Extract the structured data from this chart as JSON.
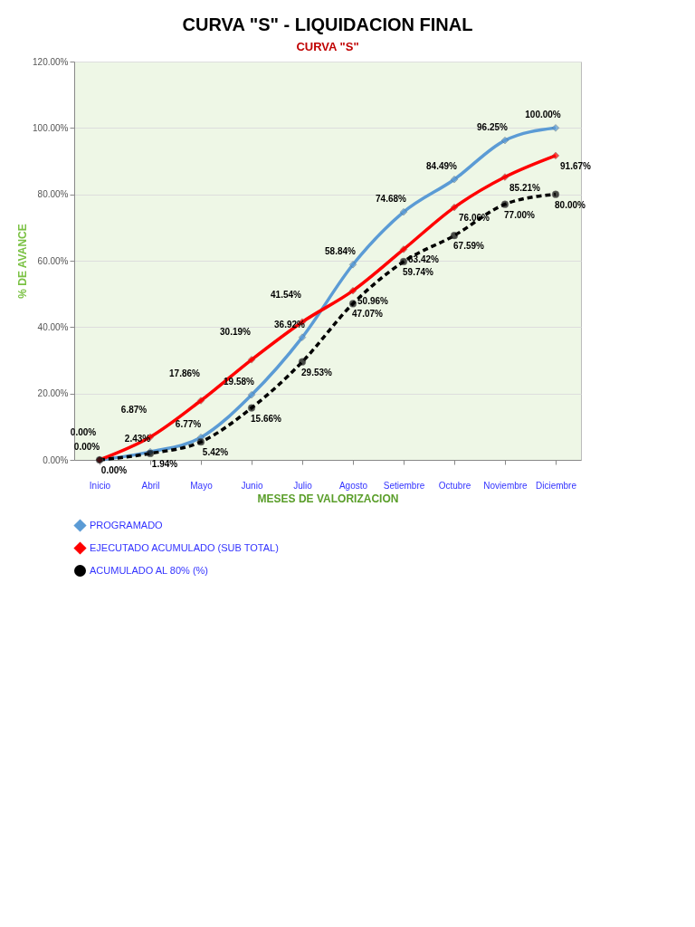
{
  "chart_data": {
    "type": "line",
    "title": "CURVA \"S\" - LIQUIDACION FINAL",
    "subtitle": "CURVA \"S\"",
    "xlabel": "MESES  DE VALORIZACION",
    "ylabel": "% DE AVANCE",
    "categories": [
      "Inicio",
      "Abril",
      "Mayo",
      "Junio",
      "Julio",
      "Agosto",
      "Setiembre",
      "Octubre",
      "Noviembre",
      "Diciembre"
    ],
    "series": [
      {
        "name": "PROGRAMADO",
        "color": "#5b9bd5",
        "marker": "diamond",
        "line_style": "solid",
        "values": [
          0.0,
          2.43,
          6.77,
          19.58,
          36.92,
          58.84,
          74.68,
          84.49,
          96.25,
          100.0
        ],
        "value_labels": [
          "0.00%",
          "2.43%",
          "6.77%",
          "19.58%",
          "36.92%",
          "58.84%",
          "74.68%",
          "84.49%",
          "96.25%",
          "100.00%"
        ]
      },
      {
        "name": "EJECUTADO ACUMULADO (SUB TOTAL)",
        "color": "#ff0000",
        "marker": "diamond",
        "line_style": "solid",
        "values": [
          0.0,
          6.87,
          17.86,
          30.19,
          41.54,
          50.96,
          63.42,
          76.06,
          85.21,
          91.67
        ],
        "value_labels": [
          "0.00%",
          "6.87%",
          "17.86%",
          "30.19%",
          "41.54%",
          "50.96%",
          "63.42%",
          "76.06%",
          "85.21%",
          "91.67%"
        ]
      },
      {
        "name": "ACUMULADO AL 80% (%)",
        "color": "#000000",
        "marker": "circle",
        "line_style": "dashed",
        "values": [
          0.0,
          1.94,
          5.42,
          15.66,
          29.53,
          47.07,
          59.74,
          67.59,
          77.0,
          80.0
        ],
        "value_labels": [
          "0.00%",
          "1.94%",
          "5.42%",
          "15.66%",
          "29.53%",
          "47.07%",
          "59.74%",
          "67.59%",
          "77.00%",
          "80.00%"
        ]
      }
    ],
    "ylim": [
      0,
      120
    ],
    "yticks": [
      {
        "value": 0,
        "label": "0.00%"
      },
      {
        "value": 20,
        "label": "20.00%"
      },
      {
        "value": 40,
        "label": "40.00%"
      },
      {
        "value": 60,
        "label": "60.00%"
      },
      {
        "value": 80,
        "label": "80.00%"
      },
      {
        "value": 100,
        "label": "100.00%"
      },
      {
        "value": 120,
        "label": "120.00%"
      }
    ],
    "grid": "y",
    "legend": "bottom"
  }
}
